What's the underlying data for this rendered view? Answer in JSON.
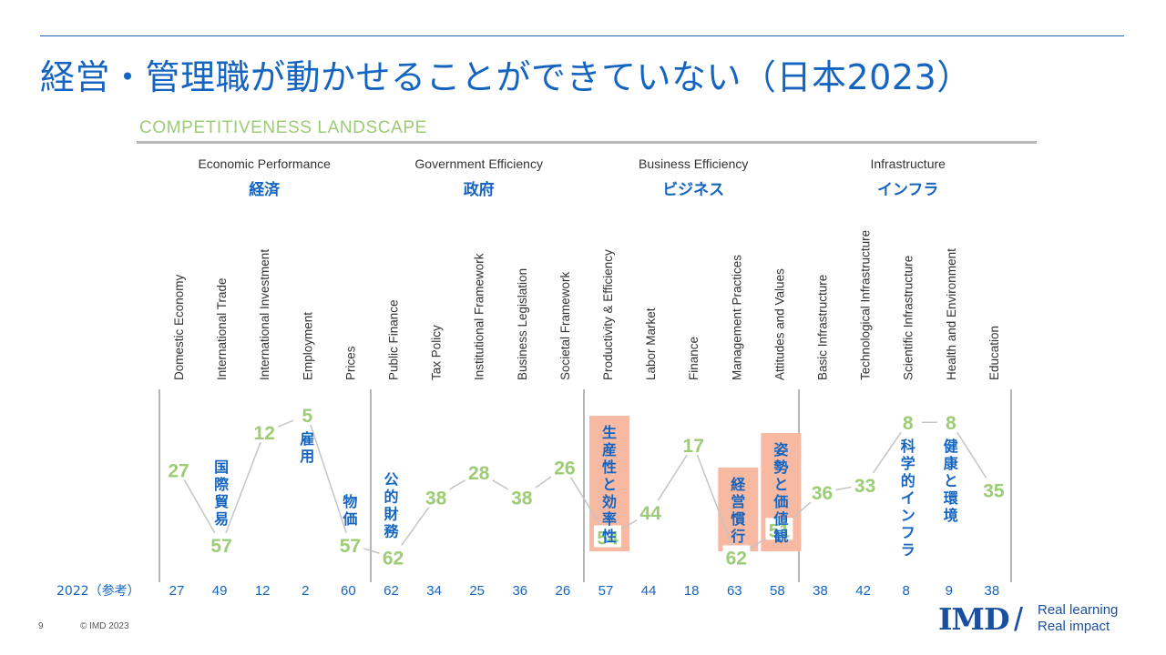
{
  "slide": {
    "title": "経営・管理職が動かせることができていない（日本2023）",
    "landscape_label": "COMPETITIVENESS LANDSCAPE",
    "page_number": "9",
    "copyright": "© IMD 2023",
    "logo_text": "IMD",
    "tagline": [
      "Real learning",
      "Real impact"
    ]
  },
  "colors": {
    "title": "#1565c0",
    "rank_green": "#9ccc75",
    "annotation_blue": "#1565c0",
    "highlight": "#f7b9a2",
    "connector": "#c4c4c4",
    "divider": "#9e9e9e"
  },
  "chart_data": {
    "type": "line",
    "description_axis": "rank (lower is better)",
    "ylim": [
      1,
      64
    ],
    "y_inverted": true,
    "groups": [
      {
        "name": "Economic Performance",
        "name_ja": "経済",
        "start": 0,
        "end": 4
      },
      {
        "name": "Government Efficiency",
        "name_ja": "政府",
        "start": 5,
        "end": 9
      },
      {
        "name": "Business Efficiency",
        "name_ja": "ビジネス",
        "start": 10,
        "end": 14
      },
      {
        "name": "Infrastructure",
        "name_ja": "インフラ",
        "start": 15,
        "end": 19
      }
    ],
    "categories": [
      "Domestic Economy",
      "International Trade",
      "International Investment",
      "Employment",
      "Prices",
      "Public Finance",
      "Tax Policy",
      "Institutional Framework",
      "Business Legislation",
      "Societal Framework",
      "Productivity & Efficiency",
      "Labor Market",
      "Finance",
      "Management Practices",
      "Attitudes and Values",
      "Basic Infrastructure",
      "Technological Infrastructure",
      "Scientific Infrastructure",
      "Health and Environment",
      "Education"
    ],
    "series": [
      {
        "values": [
          27,
          57,
          12,
          5,
          57,
          62,
          38,
          28,
          38,
          26,
          54,
          44,
          17,
          62,
          51,
          36,
          33,
          8,
          8,
          35
        ]
      }
    ],
    "prev_label": "2022（参考）",
    "prev_values": [
      27,
      49,
      12,
      2,
      60,
      62,
      34,
      25,
      36,
      26,
      57,
      44,
      18,
      63,
      58,
      38,
      42,
      8,
      9,
      38
    ],
    "annotations": [
      {
        "text": "国際貿易",
        "index": 1,
        "highlight": false
      },
      {
        "text": "雇用",
        "index": 3,
        "highlight": false
      },
      {
        "text": "物価",
        "index": 4,
        "highlight": false
      },
      {
        "text": "公的財務",
        "index": 5,
        "highlight": false
      },
      {
        "text": "生産性と効率性",
        "index": 10,
        "highlight": true
      },
      {
        "text": "経営慣行",
        "index": 13,
        "highlight": true
      },
      {
        "text": "姿勢と価値観",
        "index": 14,
        "highlight": true
      },
      {
        "text": "科学的インフラ",
        "index": 17,
        "highlight": false
      },
      {
        "text": "健康と環境",
        "index": 18,
        "highlight": false
      }
    ]
  }
}
